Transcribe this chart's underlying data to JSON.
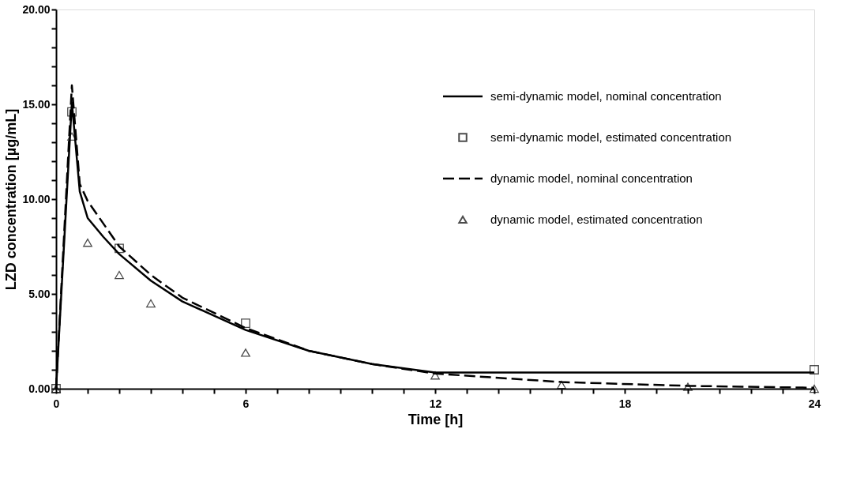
{
  "chart_data": {
    "type": "line",
    "xlabel": "Time [h]",
    "ylabel": "LZD concentration [µg/mL]",
    "xlim": [
      0,
      24
    ],
    "ylim": [
      0,
      20
    ],
    "xticks": [
      0,
      {
        "value": 1,
        "label": null
      },
      {
        "value": 2,
        "label": null
      },
      {
        "value": 3,
        "label": null
      },
      {
        "value": 4,
        "label": null
      },
      {
        "value": 5,
        "label": null
      },
      6,
      {
        "value": 7,
        "label": null
      },
      {
        "value": 8,
        "label": null
      },
      {
        "value": 9,
        "label": null
      },
      {
        "value": 10,
        "label": null
      },
      {
        "value": 11,
        "label": null
      },
      12,
      {
        "value": 13,
        "label": null
      },
      {
        "value": 14,
        "label": null
      },
      {
        "value": 15,
        "label": null
      },
      {
        "value": 16,
        "label": null
      },
      {
        "value": 17,
        "label": null
      },
      18,
      {
        "value": 19,
        "label": null
      },
      {
        "value": 20,
        "label": null
      },
      {
        "value": 21,
        "label": null
      },
      {
        "value": 22,
        "label": null
      },
      {
        "value": 23,
        "label": null
      },
      24
    ],
    "yticks": [
      {
        "value": 0,
        "label": "0.00"
      },
      {
        "value": 1,
        "label": null
      },
      {
        "value": 2,
        "label": null
      },
      {
        "value": 3,
        "label": null
      },
      {
        "value": 4,
        "label": null
      },
      {
        "value": 5,
        "label": "5.00"
      },
      {
        "value": 6,
        "label": null
      },
      {
        "value": 7,
        "label": null
      },
      {
        "value": 8,
        "label": null
      },
      {
        "value": 9,
        "label": null
      },
      {
        "value": 10,
        "label": "10.00"
      },
      {
        "value": 11,
        "label": null
      },
      {
        "value": 12,
        "label": null
      },
      {
        "value": 13,
        "label": null
      },
      {
        "value": 14,
        "label": null
      },
      {
        "value": 15,
        "label": "15.00"
      },
      {
        "value": 16,
        "label": null
      },
      {
        "value": 17,
        "label": null
      },
      {
        "value": 18,
        "label": null
      },
      {
        "value": 19,
        "label": null
      },
      {
        "value": 20,
        "label": "20.00"
      }
    ],
    "grid": false,
    "legend": "top right",
    "series": [
      {
        "name": "semi-dynamic model, nominal concentration",
        "line_style": "solid",
        "marker": "none",
        "color": "#000000",
        "x": [
          0,
          0.5,
          0.75,
          1,
          1.5,
          2,
          3,
          4,
          6,
          8,
          10,
          12,
          24
        ],
        "values": [
          0,
          15.1,
          10.4,
          9.0,
          8.0,
          7.1,
          5.7,
          4.6,
          3.1,
          2.0,
          1.3,
          0.85,
          0.85
        ]
      },
      {
        "name": "semi-dynamic model, estimated concentration",
        "type": "scatter",
        "marker": "square",
        "color": "#000000",
        "x": [
          0,
          0.5,
          2,
          6,
          24
        ],
        "values": [
          0,
          14.6,
          7.4,
          3.45,
          1.0
        ]
      },
      {
        "name": "dynamic model, nominal concentration",
        "line_style": "dashed",
        "marker": "none",
        "color": "#000000",
        "x": [
          0,
          0.5,
          0.75,
          1,
          2,
          3,
          4,
          6,
          8,
          10,
          12,
          16,
          20,
          24
        ],
        "values": [
          0,
          16.0,
          10.8,
          9.9,
          7.5,
          6.0,
          4.8,
          3.2,
          2.0,
          1.3,
          0.8,
          0.35,
          0.15,
          0.05
        ]
      },
      {
        "name": "dynamic model, estimated concentration",
        "type": "scatter",
        "marker": "triangle",
        "color": "#000000",
        "x": [
          0,
          0.5,
          1,
          2,
          3,
          6,
          12,
          16,
          20,
          24
        ],
        "values": [
          0,
          13.3,
          7.7,
          6.0,
          4.5,
          1.9,
          0.7,
          0.2,
          0.1,
          0.0
        ]
      }
    ]
  }
}
